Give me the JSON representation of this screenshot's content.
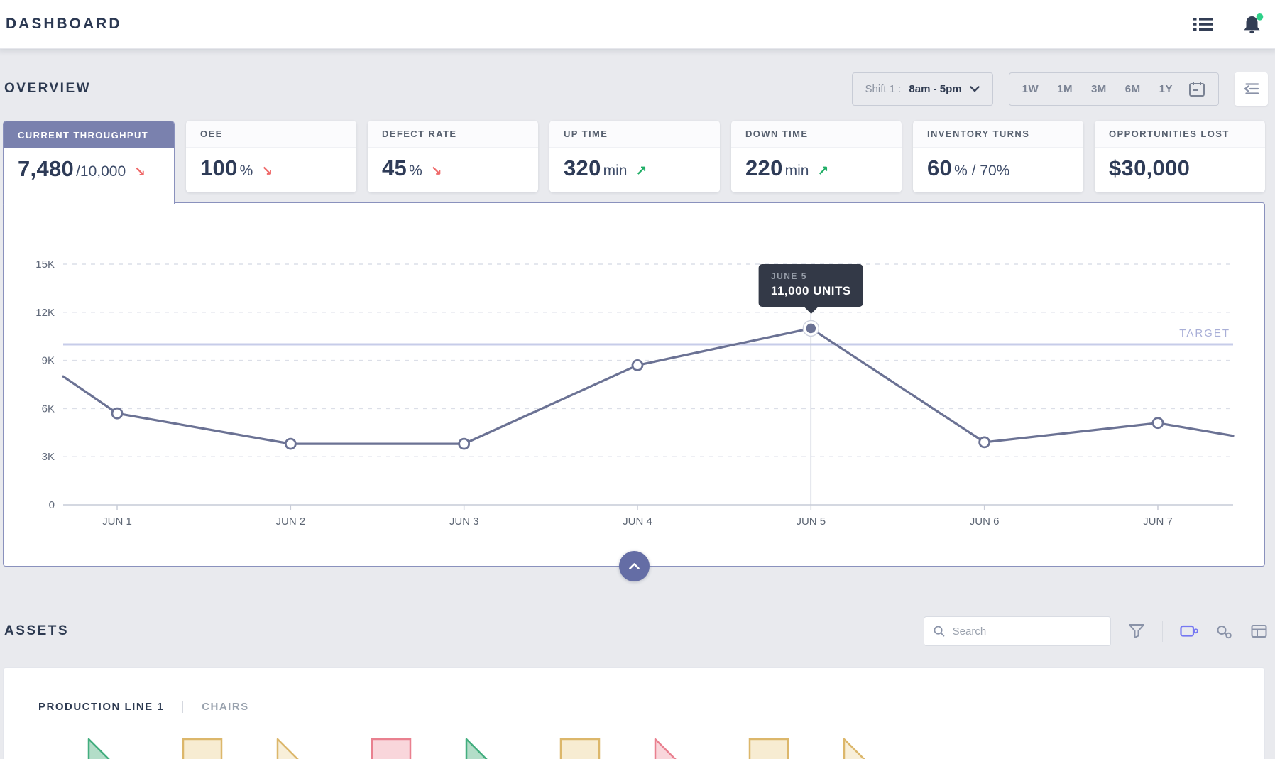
{
  "colors": {
    "accent_purple": "#7a81ae",
    "panel_border": "#8a91bd",
    "series_line": "#6b7294",
    "target_line": "#c7cce9",
    "target_label_color": "#a9afd7",
    "trend_up": "#1fae66",
    "trend_down": "#ef6a6a",
    "active_view_icon": "#7678f2",
    "inactive_icon": "#8a93a8",
    "notification_dot": "#2ed189",
    "tooltip_bg": "#333947"
  },
  "icons": {
    "trend_up_glyph": "↗",
    "trend_down_glyph": "↘"
  },
  "topbar": {
    "title": "DASHBOARD"
  },
  "overview": {
    "section_title": "OVERVIEW",
    "shift_selector": {
      "label": "Shift 1 :",
      "value": "8am - 5pm"
    },
    "time_ranges": [
      "1W",
      "1M",
      "3M",
      "6M",
      "1Y"
    ],
    "kpis": [
      {
        "label": "CURRENT THROUGHPUT",
        "value": "7,480",
        "suffix": "/10,000",
        "trend": "down",
        "selected": true
      },
      {
        "label": "OEE",
        "value": "100",
        "suffix": "%",
        "trend": "down",
        "selected": false
      },
      {
        "label": "DEFECT RATE",
        "value": "45",
        "suffix": "%",
        "trend": "down",
        "selected": false
      },
      {
        "label": "UP TIME",
        "value": "320",
        "suffix": "min",
        "trend": "up",
        "selected": false
      },
      {
        "label": "DOWN TIME",
        "value": "220",
        "suffix": "min",
        "trend": "up",
        "selected": false
      },
      {
        "label": "INVENTORY TURNS",
        "value": "60",
        "suffix": "% / 70%",
        "trend": null,
        "selected": false
      },
      {
        "label": "OPPORTUNITIES LOST",
        "value": "$30,000",
        "suffix": "",
        "trend": null,
        "selected": false
      }
    ]
  },
  "chart_data": {
    "type": "line",
    "x": [
      "JUN 1",
      "JUN 2",
      "JUN 3",
      "JUN 4",
      "JUN 5",
      "JUN 6",
      "JUN 7"
    ],
    "values": [
      5700,
      3800,
      3800,
      8700,
      11000,
      3900,
      5100
    ],
    "edge_points": {
      "start": 8000,
      "end": 4300
    },
    "target": 10000,
    "target_label": "TARGET",
    "yticks": [
      "0",
      "3K",
      "6K",
      "9K",
      "12K",
      "15K"
    ],
    "ylim": [
      0,
      15000
    ],
    "grid": "dashed-horizontal",
    "legend": "none",
    "tooltip": {
      "date": "JUNE 5",
      "value": "11,000 UNITS",
      "point_index": 4
    }
  },
  "assets": {
    "section_title": "ASSETS",
    "search_placeholder": "Search",
    "tabs": [
      {
        "label": "PRODUCTION LINE 1",
        "active": true
      },
      {
        "label": "CHAIRS",
        "active": false
      }
    ],
    "shapes": [
      {
        "type": "triangle",
        "color": "green"
      },
      {
        "type": "square",
        "color": "tan"
      },
      {
        "type": "triangle",
        "color": "yellow"
      },
      {
        "type": "square",
        "color": "pink"
      },
      {
        "type": "triangle",
        "color": "green"
      },
      {
        "type": "square",
        "color": "tan"
      },
      {
        "type": "triangle",
        "color": "pink"
      },
      {
        "type": "square",
        "color": "tan"
      },
      {
        "type": "triangle",
        "color": "yellow"
      }
    ],
    "shape_palette": {
      "green": {
        "fill": "#b3ddc8",
        "stroke": "#43ae7f"
      },
      "tan": {
        "fill": "#f7ecd2",
        "stroke": "#dcb76b"
      },
      "yellow": {
        "fill": "#f8efd9",
        "stroke": "#dcb76b"
      },
      "pink": {
        "fill": "#f9d6db",
        "stroke": "#e9808f"
      }
    }
  }
}
